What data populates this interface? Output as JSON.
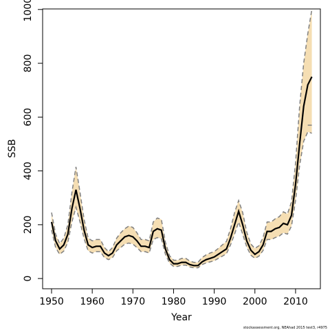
{
  "chart_data": {
    "type": "line",
    "xlabel": "Year",
    "ylabel": "SSB",
    "footnote": "stockassessment.org, NEAhad 2015 test3, r4975",
    "x": [
      1950,
      1951,
      1952,
      1953,
      1954,
      1955,
      1956,
      1957,
      1958,
      1959,
      1960,
      1961,
      1962,
      1963,
      1964,
      1965,
      1966,
      1967,
      1968,
      1969,
      1970,
      1971,
      1972,
      1973,
      1974,
      1975,
      1976,
      1977,
      1978,
      1979,
      1980,
      1981,
      1982,
      1983,
      1984,
      1985,
      1986,
      1987,
      1988,
      1989,
      1990,
      1991,
      1992,
      1993,
      1994,
      1995,
      1996,
      1997,
      1998,
      1999,
      2000,
      2001,
      2002,
      2003,
      2004,
      2005,
      2006,
      2007,
      2008,
      2009,
      2010,
      2011,
      2012,
      2013,
      2014
    ],
    "values": [
      210,
      140,
      110,
      125,
      165,
      260,
      330,
      260,
      180,
      125,
      115,
      120,
      120,
      95,
      85,
      95,
      125,
      140,
      155,
      160,
      155,
      140,
      120,
      120,
      115,
      175,
      185,
      180,
      110,
      70,
      55,
      55,
      60,
      60,
      52,
      48,
      48,
      62,
      70,
      75,
      80,
      90,
      100,
      110,
      150,
      200,
      250,
      200,
      140,
      105,
      90,
      100,
      125,
      175,
      175,
      185,
      190,
      205,
      200,
      235,
      350,
      500,
      640,
      720,
      750
    ],
    "upper": [
      245,
      165,
      130,
      150,
      200,
      320,
      415,
      320,
      220,
      150,
      140,
      145,
      145,
      115,
      100,
      115,
      150,
      170,
      185,
      195,
      190,
      170,
      145,
      145,
      140,
      210,
      225,
      220,
      135,
      85,
      68,
      68,
      75,
      75,
      65,
      60,
      60,
      78,
      88,
      95,
      100,
      112,
      125,
      138,
      185,
      245,
      290,
      245,
      172,
      128,
      112,
      122,
      152,
      210,
      210,
      222,
      230,
      248,
      240,
      285,
      430,
      640,
      800,
      910,
      1000
    ],
    "lower": [
      180,
      115,
      90,
      102,
      135,
      210,
      265,
      210,
      148,
      103,
      95,
      100,
      100,
      78,
      70,
      78,
      103,
      115,
      128,
      132,
      128,
      115,
      100,
      100,
      95,
      145,
      152,
      148,
      90,
      57,
      45,
      45,
      50,
      50,
      43,
      40,
      40,
      52,
      58,
      62,
      66,
      75,
      83,
      92,
      125,
      165,
      210,
      165,
      117,
      87,
      75,
      83,
      104,
      145,
      145,
      152,
      158,
      170,
      165,
      195,
      290,
      420,
      510,
      545,
      540
    ],
    "segment": {
      "x": [
        2013,
        2014
      ],
      "values": [
        570,
        570
      ]
    },
    "line_color": "#000000",
    "band_color": "#f5deb3",
    "bound_color": "#808080",
    "xlim": [
      1947.8,
      2016.1
    ],
    "ylim": [
      -38,
      1002
    ],
    "xticks": [
      1950,
      1960,
      1970,
      1980,
      1990,
      2000,
      2010
    ],
    "yticks": [
      0,
      200,
      400,
      600,
      800,
      1000
    ]
  }
}
